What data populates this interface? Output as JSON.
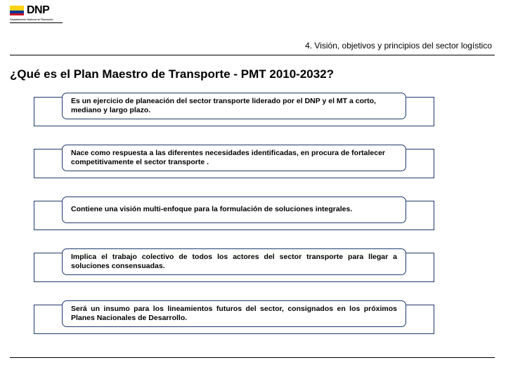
{
  "logo": {
    "text": "DNP",
    "subline": "Departamento Nacional de Planeación"
  },
  "breadcrumb": "4. Visión, objetivos y principios del sector logístico",
  "title": "¿Qué es el Plan Maestro de Transporte  - PMT 2010-2032?",
  "border_color": "#1f3a6e",
  "items": [
    {
      "text": "Es un ejercicio de planeación del sector transporte liderado por el DNP y el MT a corto, mediano y largo plazo.",
      "justify": false
    },
    {
      "text": "Nace como respuesta a las diferentes necesidades identificadas, en procura de fortalecer competitivamente el sector transporte .",
      "justify": false
    },
    {
      "text": "Contiene una visión multi-enfoque para la formulación de soluciones integrales.",
      "justify": true
    },
    {
      "text": "Implica el trabajo colectivo de todos los actores del sector transporte para llegar a soluciones consensuadas.",
      "justify": true
    },
    {
      "text": "Será un insumo para los lineamientos futuros del sector, consignados en los próximos Planes Nacionales de Desarrollo.",
      "justify": true
    }
  ]
}
